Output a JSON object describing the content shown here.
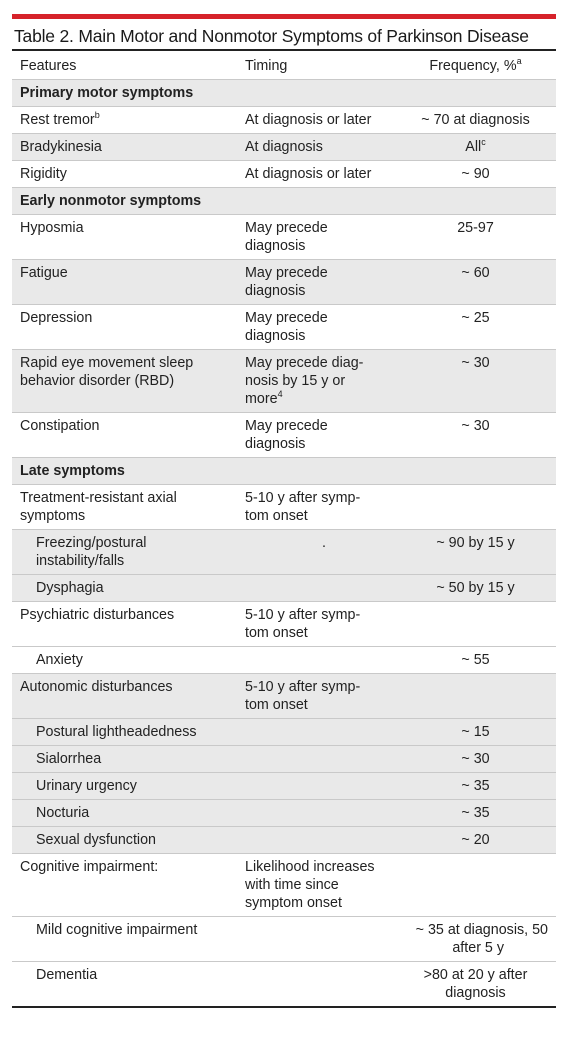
{
  "title": "Table 2. Main Motor and Nonmotor Symptoms of Parkinson Disease",
  "header": {
    "features": "Features",
    "timing": "Timing",
    "frequency": "Frequency, %",
    "frequency_sup": "a"
  },
  "rows": {
    "s1": "Primary motor symptoms",
    "r1": {
      "f": "Rest tremor",
      "fsup": "b",
      "t": "At diagnosis or later",
      "q": "~ 70 at diagnosis"
    },
    "r2": {
      "f": "Bradykinesia",
      "t": "At diagnosis",
      "q": "All",
      "qsup": "c"
    },
    "r3": {
      "f": "Rigidity",
      "t": "At diagnosis or later",
      "q": "~ 90"
    },
    "s2": "Early nonmotor symptoms",
    "r4": {
      "f": "Hyposmia",
      "t1": "May precede",
      "t2": "diagnosis",
      "q": "25-97"
    },
    "r5": {
      "f": "Fatigue",
      "t1": "May precede",
      "t2": "diagnosis",
      "q": "~ 60"
    },
    "r6": {
      "f": "Depression",
      "t1": "May precede",
      "t2": "diagnosis",
      "q": "~ 25"
    },
    "r7": {
      "f1": "Rapid eye movement sleep",
      "f2": "behavior disorder (RBD)",
      "t1": "May precede diag-",
      "t2": "nosis by 15 y or",
      "t3": "more",
      "t3sup": "4",
      "q": "~ 30"
    },
    "r8": {
      "f": "Constipation",
      "t1": "May precede",
      "t2": "diagnosis",
      "q": "~ 30"
    },
    "s3": "Late symptoms",
    "r9": {
      "f1": "Treatment-resistant axial",
      "f2": "symptoms",
      "t1": "5-10 y after symp-",
      "t2": "tom onset"
    },
    "r10": {
      "f1": "Freezing/postural",
      "f2": "instability/falls",
      "t": ".",
      "q": "~ 90 by 15 y"
    },
    "r11": {
      "f": "Dysphagia",
      "q": "~ 50 by 15 y"
    },
    "r12": {
      "f": "Psychiatric disturbances",
      "t1": "5-10 y after symp-",
      "t2": "tom onset"
    },
    "r13": {
      "f": "Anxiety",
      "q": "~ 55"
    },
    "r14": {
      "f": "Autonomic disturbances",
      "t1": "5-10 y after symp-",
      "t2": "tom onset"
    },
    "r15": {
      "f": "Postural lightheadedness",
      "q": "~ 15"
    },
    "r16": {
      "f": "Sialorrhea",
      "q": "~ 30"
    },
    "r17": {
      "f": "Urinary urgency",
      "q": "~ 35"
    },
    "r18": {
      "f": "Nocturia",
      "q": "~ 35"
    },
    "r19": {
      "f": "Sexual dysfunction",
      "q": "~ 20"
    },
    "r20": {
      "f": "Cognitive impairment:",
      "t1": "Likelihood increases",
      "t2": "with time since",
      "t3": "symptom onset"
    },
    "r21": {
      "f": "Mild cognitive impairment",
      "q1": "~ 35 at diagnosis, 50",
      "q2": "after 5 y"
    },
    "r22": {
      "f": "Dementia",
      "q1": ">80 at 20 y after",
      "q2": "diagnosis"
    }
  },
  "colors": {
    "accent": "#d6222a",
    "shade": "#e9e9e9",
    "rule": "#c9c9c9"
  }
}
